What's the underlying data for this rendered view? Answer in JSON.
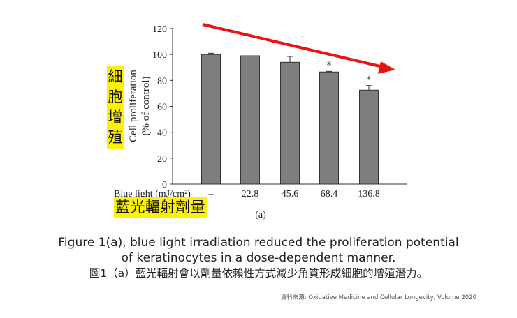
{
  "chart_data": {
    "type": "bar",
    "title": "",
    "categories": [
      "–",
      "22.8",
      "45.6",
      "68.4",
      "136.8"
    ],
    "values": [
      100,
      99,
      94,
      86.5,
      72.5
    ],
    "errors": [
      1,
      0,
      4.5,
      0.5,
      3.5
    ],
    "significance": [
      "",
      "",
      "",
      "*",
      "*"
    ],
    "xlabel": "Blue light (mJ/cm²)",
    "ylabel_line1": "Cell proliferation",
    "ylabel_line2": "(% of control)",
    "ylim": [
      0,
      120
    ],
    "yticks": [
      "0",
      "20",
      "40",
      "60",
      "80",
      "100",
      "120"
    ],
    "panel_label": "(a)",
    "bar_color": "#7f7e7c",
    "trend_arrow_color": "#ee1111",
    "annotations": {
      "ylabel_zh": "細胞增殖",
      "xlabel_zh": "藍光輻射劑量"
    }
  },
  "caption": {
    "line1": "Figure 1(a), blue light irradiation reduced the proliferation potential",
    "line2": "of keratinocytes in a dose-dependent manner.",
    "line3": "圖1（a）藍光輻射會以劑量依賴性方式減少角質形成細胞的增殖潛力。"
  },
  "source": "資料來源: Oxidative Medicine and Cellular Longevity, Volume 2020"
}
